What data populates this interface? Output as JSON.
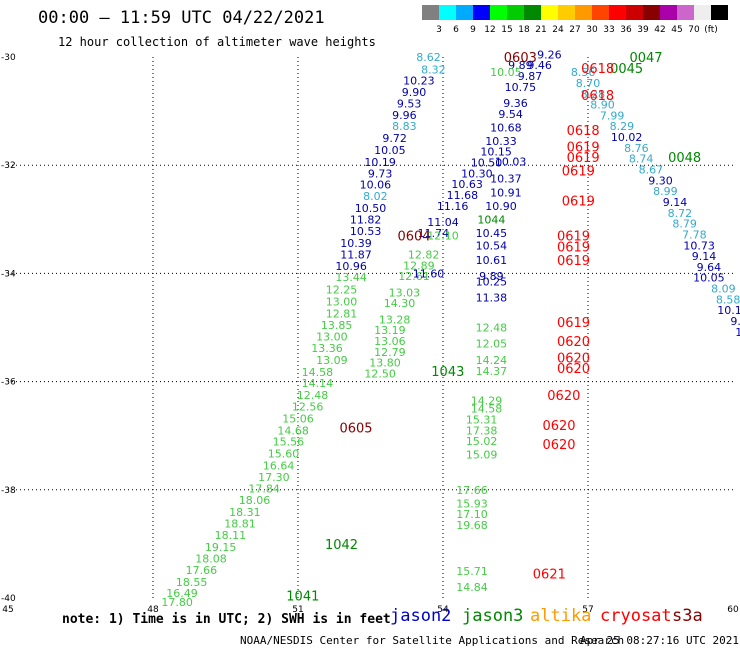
{
  "header": {
    "title": "00:00 – 11:59 UTC 04/22/2021",
    "subtitle": "12 hour collection of altimeter wave heights"
  },
  "colorbar": {
    "colors": [
      "#808080",
      "#00ffff",
      "#00aaff",
      "#0000ff",
      "#00ff00",
      "#00cc00",
      "#008800",
      "#ffff00",
      "#ffcc00",
      "#ff9900",
      "#ff4400",
      "#ff0000",
      "#cc0000",
      "#880000",
      "#aa00aa",
      "#cc66cc",
      "#eeeeee",
      "#000000"
    ],
    "tick_labels": [
      "3",
      "6",
      "9",
      "12",
      "15",
      "18",
      "21",
      "24",
      "27",
      "30",
      "33",
      "36",
      "39",
      "42",
      "45",
      "70",
      "(ft)"
    ]
  },
  "footer": {
    "note": "note: 1) Time is in UTC; 2) SWH is in feet",
    "credit": "NOAA/NESDIS Center for Satellite Applications and Research",
    "timestamp": "Apr 25 08:27:16 UTC 2021"
  },
  "legend": [
    {
      "name": "jason2",
      "color": "#0000cc"
    },
    {
      "name": "jason3",
      "color": "#008800"
    },
    {
      "name": "altika",
      "color": "#ff9900"
    },
    {
      "name": "cryosat",
      "color": "#ff0000"
    },
    {
      "name": "s3a",
      "color": "#880000"
    }
  ],
  "chart_data": {
    "type": "scatter",
    "title": "",
    "xlabel": "",
    "ylabel": "",
    "xlim": [
      45,
      60
    ],
    "ylim": [
      -40,
      -30
    ],
    "x_ticks": [
      "45",
      "48",
      "51",
      "54",
      "57",
      "60"
    ],
    "y_ticks": [
      "-30",
      "-32",
      "-34",
      "-36",
      "-38",
      "-40"
    ],
    "grid": true,
    "observations": [
      {
        "lon": 53.7,
        "lat": -30.0,
        "swh": "8.62",
        "color": "#33aacc"
      },
      {
        "lon": 53.8,
        "lat": -30.23,
        "swh": "8.32",
        "color": "#33aacc"
      },
      {
        "lon": 53.5,
        "lat": -30.43,
        "swh": "10.23",
        "color": "#0000aa"
      },
      {
        "lon": 53.4,
        "lat": -30.65,
        "swh": "9.90",
        "color": "#0000aa"
      },
      {
        "lon": 53.3,
        "lat": -30.86,
        "swh": "9.53",
        "color": "#0000aa"
      },
      {
        "lon": 53.2,
        "lat": -31.07,
        "swh": "9.96",
        "color": "#0000aa"
      },
      {
        "lon": 53.2,
        "lat": -31.28,
        "swh": "8.83",
        "color": "#33aacc"
      },
      {
        "lon": 53.0,
        "lat": -31.5,
        "swh": "9.72",
        "color": "#0000aa"
      },
      {
        "lon": 52.9,
        "lat": -31.72,
        "swh": "10.05",
        "color": "#0000aa"
      },
      {
        "lon": 52.7,
        "lat": -31.94,
        "swh": "10.19",
        "color": "#0000aa"
      },
      {
        "lon": 52.7,
        "lat": -32.15,
        "swh": "9.73",
        "color": "#0000aa"
      },
      {
        "lon": 52.6,
        "lat": -32.36,
        "swh": "10.06",
        "color": "#0000aa"
      },
      {
        "lon": 52.6,
        "lat": -32.57,
        "swh": "8.02",
        "color": "#33aacc"
      },
      {
        "lon": 52.5,
        "lat": -32.79,
        "swh": "10.50",
        "color": "#0000aa"
      },
      {
        "lon": 52.4,
        "lat": -33.0,
        "swh": "11.82",
        "color": "#0000aa"
      },
      {
        "lon": 52.4,
        "lat": -33.22,
        "swh": "10.53",
        "color": "#0000aa"
      },
      {
        "lon": 52.2,
        "lat": -33.44,
        "swh": "10.39",
        "color": "#0000aa"
      },
      {
        "lon": 52.2,
        "lat": -33.65,
        "swh": "11.87",
        "color": "#0000aa"
      },
      {
        "lon": 52.1,
        "lat": -33.86,
        "swh": "10.96",
        "color": "#0000aa"
      },
      {
        "lon": 52.1,
        "lat": -34.07,
        "swh": "13.44",
        "color": "#44cc44"
      },
      {
        "lon": 51.9,
        "lat": -34.3,
        "swh": "12.25",
        "color": "#44cc44"
      },
      {
        "lon": 51.9,
        "lat": -34.52,
        "swh": "13.00",
        "color": "#44cc44"
      },
      {
        "lon": 51.9,
        "lat": -34.74,
        "swh": "12.81",
        "color": "#44cc44"
      },
      {
        "lon": 51.8,
        "lat": -34.95,
        "swh": "13.85",
        "color": "#44cc44"
      },
      {
        "lon": 51.7,
        "lat": -35.17,
        "swh": "13.00",
        "color": "#44cc44"
      },
      {
        "lon": 51.6,
        "lat": -35.38,
        "swh": "13.36",
        "color": "#44cc44"
      },
      {
        "lon": 51.7,
        "lat": -35.6,
        "swh": "13.09",
        "color": "#44cc44"
      },
      {
        "lon": 51.4,
        "lat": -35.82,
        "swh": "14.58",
        "color": "#44cc44"
      },
      {
        "lon": 51.4,
        "lat": -36.03,
        "swh": "14.14",
        "color": "#44cc44"
      },
      {
        "lon": 51.3,
        "lat": -36.25,
        "swh": "12.48",
        "color": "#44cc44"
      },
      {
        "lon": 51.2,
        "lat": -36.46,
        "swh": "12.56",
        "color": "#44cc44"
      },
      {
        "lon": 51.0,
        "lat": -36.68,
        "swh": "15.06",
        "color": "#44cc44"
      },
      {
        "lon": 50.9,
        "lat": -36.9,
        "swh": "14.68",
        "color": "#44cc44"
      },
      {
        "lon": 50.8,
        "lat": -37.11,
        "swh": "15.56",
        "color": "#44cc44"
      },
      {
        "lon": 50.7,
        "lat": -37.33,
        "swh": "15.60",
        "color": "#44cc44"
      },
      {
        "lon": 50.6,
        "lat": -37.55,
        "swh": "16.64",
        "color": "#44cc44"
      },
      {
        "lon": 50.5,
        "lat": -37.76,
        "swh": "17.30",
        "color": "#44cc44"
      },
      {
        "lon": 50.3,
        "lat": -37.98,
        "swh": "17.84",
        "color": "#44cc44"
      },
      {
        "lon": 50.1,
        "lat": -38.19,
        "swh": "18.06",
        "color": "#44cc44"
      },
      {
        "lon": 49.9,
        "lat": -38.41,
        "swh": "18.31",
        "color": "#44cc44"
      },
      {
        "lon": 49.8,
        "lat": -38.62,
        "swh": "18.81",
        "color": "#44cc44"
      },
      {
        "lon": 49.6,
        "lat": -38.84,
        "swh": "18.11",
        "color": "#44cc44"
      },
      {
        "lon": 49.4,
        "lat": -39.06,
        "swh": "19.15",
        "color": "#44cc44"
      },
      {
        "lon": 49.2,
        "lat": -39.27,
        "swh": "18.08",
        "color": "#44cc44"
      },
      {
        "lon": 49.0,
        "lat": -39.48,
        "swh": "17.66",
        "color": "#44cc44"
      },
      {
        "lon": 48.8,
        "lat": -39.7,
        "swh": "18.55",
        "color": "#44cc44"
      },
      {
        "lon": 48.6,
        "lat": -39.91,
        "swh": "16.49",
        "color": "#44cc44"
      },
      {
        "lon": 48.5,
        "lat": -40.07,
        "swh": "17.80",
        "color": "#44cc44"
      },
      {
        "lon": 52.7,
        "lat": -35.85,
        "swh": "12.50",
        "color": "#44cc44"
      },
      {
        "lon": 52.8,
        "lat": -35.65,
        "swh": "13.80",
        "color": "#44cc44"
      },
      {
        "lon": 52.9,
        "lat": -35.45,
        "swh": "12.79",
        "color": "#44cc44"
      },
      {
        "lon": 52.9,
        "lat": -35.25,
        "swh": "13.06",
        "color": "#44cc44"
      },
      {
        "lon": 52.9,
        "lat": -35.05,
        "swh": "13.19",
        "color": "#44cc44"
      },
      {
        "lon": 53.0,
        "lat": -34.85,
        "swh": "13.28",
        "color": "#44cc44"
      },
      {
        "lon": 53.1,
        "lat": -34.55,
        "swh": "14.30",
        "color": "#44cc44"
      },
      {
        "lon": 53.2,
        "lat": -34.35,
        "swh": "13.03",
        "color": "#44cc44"
      },
      {
        "lon": 53.4,
        "lat": -34.05,
        "swh": "12.61",
        "color": "#44cc44"
      },
      {
        "lon": 53.5,
        "lat": -33.85,
        "swh": "12.89",
        "color": "#44cc44"
      },
      {
        "lon": 53.6,
        "lat": -33.65,
        "swh": "12.82",
        "color": "#44cc44"
      },
      {
        "lon": 53.8,
        "lat": -33.25,
        "swh": "11.74",
        "color": "#0000aa"
      },
      {
        "lon": 54.0,
        "lat": -33.05,
        "swh": "11.04",
        "color": "#0000aa"
      },
      {
        "lon": 54.2,
        "lat": -32.75,
        "swh": "11.16",
        "color": "#0000aa"
      },
      {
        "lon": 54.4,
        "lat": -32.55,
        "swh": "11.68",
        "color": "#0000aa"
      },
      {
        "lon": 54.5,
        "lat": -32.35,
        "swh": "10.63",
        "color": "#0000aa"
      },
      {
        "lon": 54.7,
        "lat": -32.15,
        "swh": "10.30",
        "color": "#0000aa"
      },
      {
        "lon": 54.9,
        "lat": -31.95,
        "swh": "10.50",
        "color": "#0000aa"
      },
      {
        "lon": 55.1,
        "lat": -31.75,
        "swh": "10.15",
        "color": "#0000aa"
      },
      {
        "lon": 55.2,
        "lat": -31.55,
        "swh": "10.33",
        "color": "#0000aa"
      },
      {
        "lon": 55.3,
        "lat": -31.3,
        "swh": "10.68",
        "color": "#0000aa"
      },
      {
        "lon": 55.4,
        "lat": -31.05,
        "swh": "9.54",
        "color": "#0000aa"
      },
      {
        "lon": 55.5,
        "lat": -30.85,
        "swh": "9.36",
        "color": "#0000aa"
      },
      {
        "lon": 55.6,
        "lat": -30.55,
        "swh": "10.75",
        "color": "#0000aa"
      },
      {
        "lon": 55.8,
        "lat": -30.35,
        "swh": "9.87",
        "color": "#0000aa"
      },
      {
        "lon": 56.0,
        "lat": -30.15,
        "swh": "9.46",
        "color": "#0000aa"
      },
      {
        "lon": 56.2,
        "lat": -29.95,
        "swh": "9.26",
        "color": "#0000aa"
      },
      {
        "lon": 55.6,
        "lat": -30.15,
        "swh": "9.89",
        "color": "#0000aa"
      },
      {
        "lon": 55.3,
        "lat": -30.28,
        "swh": "10.05",
        "color": "#44cc44"
      },
      {
        "lon": 56.9,
        "lat": -30.28,
        "swh": "8.56",
        "color": "#33aacc"
      },
      {
        "lon": 57.0,
        "lat": -30.48,
        "swh": "8.70",
        "color": "#33aacc"
      },
      {
        "lon": 57.1,
        "lat": -30.68,
        "swh": "8.28",
        "color": "#33aacc"
      },
      {
        "lon": 57.3,
        "lat": -30.88,
        "swh": "8.90",
        "color": "#33aacc"
      },
      {
        "lon": 57.5,
        "lat": -31.08,
        "swh": "7.99",
        "color": "#33aacc"
      },
      {
        "lon": 57.7,
        "lat": -31.28,
        "swh": "8.29",
        "color": "#33aacc"
      },
      {
        "lon": 57.8,
        "lat": -31.48,
        "swh": "10.02",
        "color": "#0000aa"
      },
      {
        "lon": 58.0,
        "lat": -31.68,
        "swh": "8.76",
        "color": "#33aacc"
      },
      {
        "lon": 58.1,
        "lat": -31.88,
        "swh": "8.74",
        "color": "#33aacc"
      },
      {
        "lon": 58.3,
        "lat": -32.08,
        "swh": "8.67",
        "color": "#33aacc"
      },
      {
        "lon": 58.5,
        "lat": -32.28,
        "swh": "9.30",
        "color": "#0000aa"
      },
      {
        "lon": 58.6,
        "lat": -32.48,
        "swh": "8.99",
        "color": "#33aacc"
      },
      {
        "lon": 58.8,
        "lat": -32.68,
        "swh": "9.14",
        "color": "#0000aa"
      },
      {
        "lon": 58.9,
        "lat": -32.88,
        "swh": "8.72",
        "color": "#33aacc"
      },
      {
        "lon": 59.0,
        "lat": -33.08,
        "swh": "8.79",
        "color": "#33aacc"
      },
      {
        "lon": 59.2,
        "lat": -33.28,
        "swh": "7.78",
        "color": "#33aacc"
      },
      {
        "lon": 59.3,
        "lat": -33.48,
        "swh": "10.73",
        "color": "#0000aa"
      },
      {
        "lon": 59.4,
        "lat": -33.68,
        "swh": "9.14",
        "color": "#0000aa"
      },
      {
        "lon": 59.5,
        "lat": -33.88,
        "swh": "9.64",
        "color": "#0000aa"
      },
      {
        "lon": 59.5,
        "lat": -34.08,
        "swh": "10.05",
        "color": "#0000aa"
      },
      {
        "lon": 59.8,
        "lat": -34.28,
        "swh": "8.09",
        "color": "#33aacc"
      },
      {
        "lon": 59.9,
        "lat": -34.48,
        "swh": "8.58",
        "color": "#33aacc"
      },
      {
        "lon": 60.0,
        "lat": -34.68,
        "swh": "10.12",
        "color": "#0000aa"
      },
      {
        "lon": 60.2,
        "lat": -34.88,
        "swh": "9.62",
        "color": "#0000aa"
      },
      {
        "lon": 60.3,
        "lat": -35.08,
        "swh": "10.3",
        "color": "#0000aa"
      },
      {
        "lon": 60.5,
        "lat": -35.28,
        "swh": "9.6",
        "color": "#0000aa"
      },
      {
        "lon": 60.6,
        "lat": -35.48,
        "swh": "9.",
        "color": "#0000aa"
      },
      {
        "lon": 55.4,
        "lat": -31.93,
        "swh": "10.03",
        "color": "#0000aa"
      },
      {
        "lon": 55.3,
        "lat": -32.25,
        "swh": "10.37",
        "color": "#0000aa"
      },
      {
        "lon": 55.3,
        "lat": -32.5,
        "swh": "10.91",
        "color": "#0000aa"
      },
      {
        "lon": 55.2,
        "lat": -32.75,
        "swh": "10.90",
        "color": "#0000aa"
      },
      {
        "lon": 55.0,
        "lat": -33.0,
        "swh": "1044",
        "color": "#008800"
      },
      {
        "lon": 55.0,
        "lat": -33.25,
        "swh": "10.45",
        "color": "#0000aa"
      },
      {
        "lon": 55.0,
        "lat": -33.48,
        "swh": "10.54",
        "color": "#0000aa"
      },
      {
        "lon": 55.0,
        "lat": -33.75,
        "swh": "10.61",
        "color": "#0000aa"
      },
      {
        "lon": 54.0,
        "lat": -33.3,
        "swh": "12.10",
        "color": "#44cc44"
      },
      {
        "lon": 53.7,
        "lat": -34.0,
        "swh": "11.60",
        "color": "#0000aa"
      },
      {
        "lon": 55.0,
        "lat": -34.05,
        "swh": "9.89",
        "color": "#0000aa"
      },
      {
        "lon": 55.0,
        "lat": -34.15,
        "swh": "10.25",
        "color": "#0000aa"
      },
      {
        "lon": 55.0,
        "lat": -34.45,
        "swh": "11.38",
        "color": "#0000aa"
      },
      {
        "lon": 55.0,
        "lat": -35.0,
        "swh": "12.48",
        "color": "#44cc44"
      },
      {
        "lon": 55.0,
        "lat": -35.3,
        "swh": "12.05",
        "color": "#44cc44"
      },
      {
        "lon": 55.0,
        "lat": -35.6,
        "swh": "14.24",
        "color": "#44cc44"
      },
      {
        "lon": 55.0,
        "lat": -35.8,
        "swh": "14.37",
        "color": "#44cc44"
      },
      {
        "lon": 54.9,
        "lat": -36.35,
        "swh": "14.29",
        "color": "#44cc44"
      },
      {
        "lon": 54.9,
        "lat": -36.5,
        "swh": "14.58",
        "color": "#44cc44"
      },
      {
        "lon": 54.8,
        "lat": -36.7,
        "swh": "15.31",
        "color": "#44cc44"
      },
      {
        "lon": 54.8,
        "lat": -36.9,
        "swh": "17.38",
        "color": "#44cc44"
      },
      {
        "lon": 54.8,
        "lat": -37.1,
        "swh": "15.02",
        "color": "#44cc44"
      },
      {
        "lon": 54.8,
        "lat": -37.35,
        "swh": "15.09",
        "color": "#44cc44"
      },
      {
        "lon": 54.6,
        "lat": -38.0,
        "swh": "17.66",
        "color": "#44cc44"
      },
      {
        "lon": 54.6,
        "lat": -38.25,
        "swh": "15.93",
        "color": "#44cc44"
      },
      {
        "lon": 54.6,
        "lat": -38.45,
        "swh": "17.10",
        "color": "#44cc44"
      },
      {
        "lon": 54.6,
        "lat": -38.65,
        "swh": "19.68",
        "color": "#44cc44"
      },
      {
        "lon": 54.6,
        "lat": -39.5,
        "swh": "15.71",
        "color": "#44cc44"
      },
      {
        "lon": 54.6,
        "lat": -39.8,
        "swh": "14.84",
        "color": "#44cc44"
      }
    ],
    "time_labels": [
      {
        "lon": 55.6,
        "lat": -30.0,
        "text": "0603",
        "color": "#880000"
      },
      {
        "lon": 58.2,
        "lat": -30.0,
        "text": "0047",
        "color": "#008800"
      },
      {
        "lon": 57.8,
        "lat": -30.2,
        "text": "0045",
        "color": "#008800"
      },
      {
        "lon": 57.2,
        "lat": -30.2,
        "text": "0618",
        "color": "#ff0000"
      },
      {
        "lon": 57.2,
        "lat": -30.7,
        "text": "0618",
        "color": "#ff0000"
      },
      {
        "lon": 56.9,
        "lat": -31.35,
        "text": "0618",
        "color": "#ff0000"
      },
      {
        "lon": 56.9,
        "lat": -31.65,
        "text": "0619",
        "color": "#ff0000"
      },
      {
        "lon": 56.9,
        "lat": -31.85,
        "text": "0619",
        "color": "#ff0000"
      },
      {
        "lon": 56.8,
        "lat": -32.1,
        "text": "0619",
        "color": "#ff0000"
      },
      {
        "lon": 59.0,
        "lat": -31.85,
        "text": "0048",
        "color": "#008800"
      },
      {
        "lon": 56.8,
        "lat": -32.65,
        "text": "0619",
        "color": "#ff0000"
      },
      {
        "lon": 53.4,
        "lat": -33.3,
        "text": "0604",
        "color": "#880000"
      },
      {
        "lon": 56.7,
        "lat": -33.3,
        "text": "0619",
        "color": "#ff0000"
      },
      {
        "lon": 56.7,
        "lat": -33.5,
        "text": "0619",
        "color": "#ff0000"
      },
      {
        "lon": 56.7,
        "lat": -33.75,
        "text": "0619",
        "color": "#ff0000"
      },
      {
        "lon": 56.7,
        "lat": -34.9,
        "text": "0619",
        "color": "#ff0000"
      },
      {
        "lon": 56.7,
        "lat": -35.25,
        "text": "0620",
        "color": "#ff0000"
      },
      {
        "lon": 56.7,
        "lat": -35.55,
        "text": "0620",
        "color": "#ff0000"
      },
      {
        "lon": 56.7,
        "lat": -35.75,
        "text": "0620",
        "color": "#ff0000"
      },
      {
        "lon": 54.1,
        "lat": -35.8,
        "text": "1043",
        "color": "#008800"
      },
      {
        "lon": 56.5,
        "lat": -36.25,
        "text": "0620",
        "color": "#ff0000"
      },
      {
        "lon": 52.2,
        "lat": -36.85,
        "text": "0605",
        "color": "#880000"
      },
      {
        "lon": 56.4,
        "lat": -36.8,
        "text": "0620",
        "color": "#ff0000"
      },
      {
        "lon": 56.4,
        "lat": -37.15,
        "text": "0620",
        "color": "#ff0000"
      },
      {
        "lon": 51.9,
        "lat": -39.0,
        "text": "1042",
        "color": "#008800"
      },
      {
        "lon": 56.2,
        "lat": -39.55,
        "text": "0621",
        "color": "#ff0000"
      },
      {
        "lon": 51.1,
        "lat": -39.95,
        "text": "1041",
        "color": "#008800"
      }
    ]
  }
}
